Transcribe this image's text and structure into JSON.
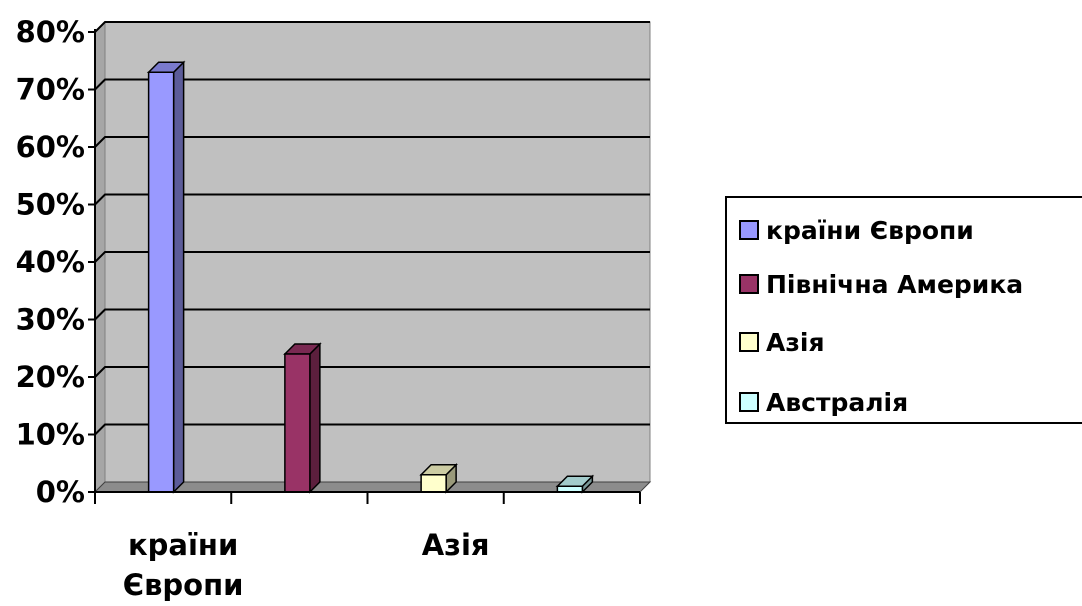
{
  "chart_data": {
    "type": "bar",
    "categories": [
      "країни Європи",
      "Північна Америка",
      "Азія",
      "Австралія"
    ],
    "values": [
      73,
      24,
      3,
      1
    ],
    "axis_labels_shown": [
      "країни Європи",
      "Азія"
    ],
    "y_ticks": [
      "0%",
      "10%",
      "20%",
      "30%",
      "40%",
      "50%",
      "60%",
      "70%",
      "80%"
    ],
    "ylim": [
      0,
      80
    ],
    "unit": "%",
    "grid": true,
    "legend_position": "right",
    "colors": [
      "#9999FF",
      "#993366",
      "#FFFFCC",
      "#CCFFFF"
    ],
    "plot_background": "#C0C0C0"
  },
  "legend": {
    "items": [
      {
        "label": "країни Європи",
        "color": "#9999FF"
      },
      {
        "label": "Північна Америка",
        "color": "#993366"
      },
      {
        "label": "Азія",
        "color": "#FFFFCC"
      },
      {
        "label": "Австралія",
        "color": "#CCFFFF"
      }
    ]
  }
}
